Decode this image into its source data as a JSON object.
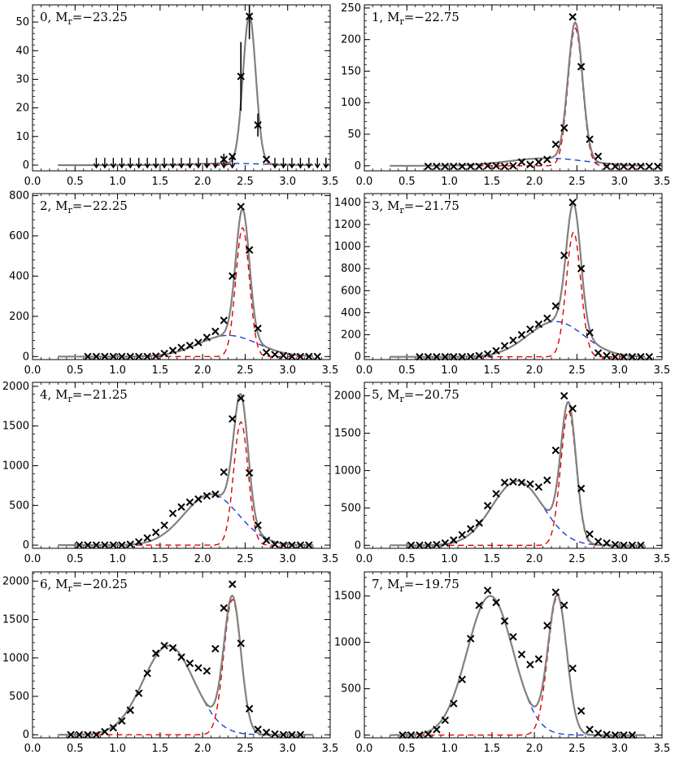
{
  "colors": {
    "total_fit": "#808080",
    "red_component": "#e00000",
    "blue_component": "#1f3fd0",
    "data_marker": "#000000",
    "axis": "#000000"
  },
  "chart_data": [
    {
      "type": "line",
      "label_index": "0",
      "label_mag": "−23.25",
      "xlim": [
        0.0,
        3.5
      ],
      "ylim": [
        -2,
        56
      ],
      "xticks": [
        0.0,
        0.5,
        1.0,
        1.5,
        2.0,
        2.5,
        3.0,
        3.5
      ],
      "xtick_labels": [
        "0.0",
        "0.5",
        "1.0",
        "1.5",
        "2.0",
        "2.5",
        "3.0",
        "3.5"
      ],
      "yticks": [
        0,
        10,
        20,
        30,
        40,
        50
      ],
      "ytick_labels": [
        "0",
        "10",
        "20",
        "30",
        "40",
        "50"
      ],
      "red": {
        "amp": 52,
        "mu": 2.55,
        "sigma": 0.075
      },
      "blue": {
        "amp": 0.6,
        "mu": 2.3,
        "sigma": 0.4
      },
      "points": [
        [
          2.25,
          2
        ],
        [
          2.35,
          3
        ],
        [
          2.45,
          31
        ],
        [
          2.55,
          52
        ],
        [
          2.65,
          14
        ],
        [
          2.75,
          2
        ]
      ],
      "upper_limits": [
        0.75,
        0.85,
        0.95,
        1.05,
        1.15,
        1.25,
        1.35,
        1.45,
        1.55,
        1.65,
        1.75,
        1.85,
        1.95,
        2.05,
        2.15,
        2.25,
        2.35,
        2.85,
        2.95,
        3.05,
        3.15,
        3.25,
        3.35,
        3.45
      ],
      "error_bars": [
        [
          2.45,
          31,
          12
        ],
        [
          2.55,
          52,
          8
        ],
        [
          2.65,
          14,
          4
        ],
        [
          2.25,
          2,
          2
        ]
      ]
    },
    {
      "type": "line",
      "label_index": "1",
      "label_mag": "−22.75",
      "xlim": [
        0.0,
        3.5
      ],
      "ylim": [
        -8,
        255
      ],
      "xticks": [
        0.0,
        0.5,
        1.0,
        1.5,
        2.0,
        2.5,
        3.0,
        3.5
      ],
      "xtick_labels": [
        "0.0",
        "0.5",
        "1.0",
        "1.5",
        "2.0",
        "2.5",
        "3.0",
        "3.5"
      ],
      "yticks": [
        0,
        50,
        100,
        150,
        200,
        250
      ],
      "ytick_labels": [
        "0",
        "50",
        "100",
        "150",
        "200",
        "250"
      ],
      "red": {
        "amp": 218,
        "mu": 2.48,
        "sigma": 0.085
      },
      "blue": {
        "amp": 12,
        "mu": 2.15,
        "sigma": 0.45
      },
      "points": [
        [
          0.75,
          -1
        ],
        [
          0.85,
          -1
        ],
        [
          0.95,
          -1
        ],
        [
          1.05,
          -1
        ],
        [
          1.15,
          -1
        ],
        [
          1.25,
          -1
        ],
        [
          1.35,
          -1
        ],
        [
          1.45,
          0
        ],
        [
          1.55,
          0
        ],
        [
          1.65,
          -1
        ],
        [
          1.75,
          0
        ],
        [
          1.85,
          6
        ],
        [
          1.95,
          2
        ],
        [
          2.05,
          6
        ],
        [
          2.15,
          10
        ],
        [
          2.25,
          34
        ],
        [
          2.35,
          60
        ],
        [
          2.45,
          236
        ],
        [
          2.55,
          157
        ],
        [
          2.65,
          42
        ],
        [
          2.75,
          15
        ],
        [
          2.85,
          -1
        ],
        [
          2.95,
          -1
        ],
        [
          3.05,
          -1
        ],
        [
          3.15,
          -1
        ],
        [
          3.25,
          -1
        ],
        [
          3.35,
          -1
        ],
        [
          3.45,
          -1
        ]
      ]
    },
    {
      "type": "line",
      "label_index": "2",
      "label_mag": "−22.25",
      "xlim": [
        0.0,
        3.5
      ],
      "ylim": [
        -15,
        810
      ],
      "xticks": [
        0.0,
        0.5,
        1.0,
        1.5,
        2.0,
        2.5,
        3.0,
        3.5
      ],
      "xtick_labels": [
        "0.0",
        "0.5",
        "1.0",
        "1.5",
        "2.0",
        "2.5",
        "3.0",
        "3.5"
      ],
      "yticks": [
        0,
        200,
        400,
        600,
        800
      ],
      "ytick_labels": [
        "0",
        "200",
        "400",
        "600",
        "800"
      ],
      "red": {
        "amp": 640,
        "mu": 2.47,
        "sigma": 0.08
      },
      "blue": {
        "amp": 105,
        "mu": 2.3,
        "sigma": 0.35
      },
      "points": [
        [
          0.65,
          0
        ],
        [
          0.75,
          0
        ],
        [
          0.85,
          0
        ],
        [
          0.95,
          0
        ],
        [
          1.05,
          0
        ],
        [
          1.15,
          0
        ],
        [
          1.25,
          0
        ],
        [
          1.35,
          0
        ],
        [
          1.45,
          2
        ],
        [
          1.55,
          15
        ],
        [
          1.65,
          30
        ],
        [
          1.75,
          45
        ],
        [
          1.85,
          55
        ],
        [
          1.95,
          70
        ],
        [
          2.05,
          95
        ],
        [
          2.15,
          125
        ],
        [
          2.25,
          180
        ],
        [
          2.35,
          400
        ],
        [
          2.45,
          745
        ],
        [
          2.55,
          530
        ],
        [
          2.65,
          140
        ],
        [
          2.75,
          20
        ],
        [
          2.85,
          10
        ],
        [
          2.95,
          5
        ],
        [
          3.05,
          0
        ],
        [
          3.15,
          0
        ],
        [
          3.25,
          0
        ],
        [
          3.35,
          0
        ]
      ]
    },
    {
      "type": "line",
      "label_index": "3",
      "label_mag": "−21.75",
      "xlim": [
        0.0,
        3.5
      ],
      "ylim": [
        -25,
        1480
      ],
      "xticks": [
        0.0,
        0.5,
        1.0,
        1.5,
        2.0,
        2.5,
        3.0,
        3.5
      ],
      "xtick_labels": [
        "0.0",
        "0.5",
        "1.0",
        "1.5",
        "2.0",
        "2.5",
        "3.0",
        "3.5"
      ],
      "yticks": [
        0,
        200,
        400,
        600,
        800,
        1000,
        1200,
        1400
      ],
      "ytick_labels": [
        "0",
        "200",
        "400",
        "600",
        "800",
        "1000",
        "1200",
        "1400"
      ],
      "red": {
        "amp": 1130,
        "mu": 2.46,
        "sigma": 0.085
      },
      "blue": {
        "amp": 320,
        "mu": 2.25,
        "sigma": 0.33
      },
      "points": [
        [
          0.65,
          0
        ],
        [
          0.75,
          0
        ],
        [
          0.85,
          0
        ],
        [
          0.95,
          0
        ],
        [
          1.05,
          0
        ],
        [
          1.15,
          0
        ],
        [
          1.25,
          2
        ],
        [
          1.35,
          10
        ],
        [
          1.45,
          25
        ],
        [
          1.55,
          55
        ],
        [
          1.65,
          100
        ],
        [
          1.75,
          150
        ],
        [
          1.85,
          200
        ],
        [
          1.95,
          250
        ],
        [
          2.05,
          295
        ],
        [
          2.15,
          350
        ],
        [
          2.25,
          460
        ],
        [
          2.35,
          920
        ],
        [
          2.45,
          1400
        ],
        [
          2.55,
          800
        ],
        [
          2.65,
          220
        ],
        [
          2.75,
          35
        ],
        [
          2.85,
          10
        ],
        [
          2.95,
          0
        ],
        [
          3.05,
          0
        ],
        [
          3.15,
          0
        ],
        [
          3.25,
          0
        ],
        [
          3.35,
          0
        ]
      ]
    },
    {
      "type": "line",
      "label_index": "4",
      "label_mag": "−21.25",
      "xlim": [
        0.0,
        3.5
      ],
      "ylim": [
        -40,
        2050
      ],
      "xticks": [
        0.0,
        0.5,
        1.0,
        1.5,
        2.0,
        2.5,
        3.0,
        3.5
      ],
      "xtick_labels": [
        "0.0",
        "0.5",
        "1.0",
        "1.5",
        "2.0",
        "2.5",
        "3.0",
        "3.5"
      ],
      "yticks": [
        0,
        500,
        1000,
        1500,
        2000
      ],
      "ytick_labels": [
        "0",
        "500",
        "1000",
        "1500",
        "2000"
      ],
      "red": {
        "amp": 1550,
        "mu": 2.45,
        "sigma": 0.085
      },
      "blue": {
        "amp": 640,
        "mu": 2.1,
        "sigma": 0.32
      },
      "points": [
        [
          0.55,
          0
        ],
        [
          0.65,
          0
        ],
        [
          0.75,
          0
        ],
        [
          0.85,
          0
        ],
        [
          0.95,
          0
        ],
        [
          1.05,
          0
        ],
        [
          1.15,
          10
        ],
        [
          1.25,
          40
        ],
        [
          1.35,
          90
        ],
        [
          1.45,
          160
        ],
        [
          1.55,
          250
        ],
        [
          1.65,
          400
        ],
        [
          1.75,
          480
        ],
        [
          1.85,
          540
        ],
        [
          1.95,
          580
        ],
        [
          2.05,
          620
        ],
        [
          2.15,
          640
        ],
        [
          2.25,
          920
        ],
        [
          2.35,
          1590
        ],
        [
          2.45,
          1850
        ],
        [
          2.55,
          910
        ],
        [
          2.65,
          250
        ],
        [
          2.75,
          60
        ],
        [
          2.85,
          10
        ],
        [
          2.95,
          0
        ],
        [
          3.05,
          0
        ],
        [
          3.15,
          0
        ],
        [
          3.25,
          0
        ]
      ]
    },
    {
      "type": "line",
      "label_index": "5",
      "label_mag": "−20.75",
      "xlim": [
        0.0,
        3.5
      ],
      "ylim": [
        -40,
        2180
      ],
      "xticks": [
        0.0,
        0.5,
        1.0,
        1.5,
        2.0,
        2.5,
        3.0,
        3.5
      ],
      "xtick_labels": [
        "0.0",
        "0.5",
        "1.0",
        "1.5",
        "2.0",
        "2.5",
        "3.0",
        "3.5"
      ],
      "yticks": [
        0,
        500,
        1000,
        1500,
        2000
      ],
      "ytick_labels": [
        "0",
        "500",
        "1000",
        "1500",
        "2000"
      ],
      "red": {
        "amp": 1800,
        "mu": 2.4,
        "sigma": 0.09
      },
      "blue": {
        "amp": 860,
        "mu": 1.8,
        "sigma": 0.3
      },
      "points": [
        [
          0.55,
          0
        ],
        [
          0.65,
          0
        ],
        [
          0.75,
          0
        ],
        [
          0.85,
          10
        ],
        [
          0.95,
          30
        ],
        [
          1.05,
          70
        ],
        [
          1.15,
          140
        ],
        [
          1.25,
          220
        ],
        [
          1.35,
          300
        ],
        [
          1.45,
          530
        ],
        [
          1.55,
          690
        ],
        [
          1.65,
          840
        ],
        [
          1.75,
          850
        ],
        [
          1.85,
          840
        ],
        [
          1.95,
          820
        ],
        [
          2.05,
          780
        ],
        [
          2.15,
          870
        ],
        [
          2.25,
          1270
        ],
        [
          2.35,
          2000
        ],
        [
          2.45,
          1830
        ],
        [
          2.55,
          760
        ],
        [
          2.65,
          150
        ],
        [
          2.75,
          50
        ],
        [
          2.85,
          30
        ],
        [
          2.95,
          10
        ],
        [
          3.05,
          0
        ],
        [
          3.15,
          0
        ],
        [
          3.25,
          0
        ]
      ]
    },
    {
      "type": "line",
      "label_index": "6",
      "label_mag": "−20.25",
      "xlim": [
        0.0,
        3.5
      ],
      "ylim": [
        -40,
        2120
      ],
      "xticks": [
        0.0,
        0.5,
        1.0,
        1.5,
        2.0,
        2.5,
        3.0,
        3.5
      ],
      "xtick_labels": [
        "0.0",
        "0.5",
        "1.0",
        "1.5",
        "2.0",
        "2.5",
        "3.0",
        "3.5"
      ],
      "yticks": [
        0,
        500,
        1000,
        1500,
        2000
      ],
      "ytick_labels": [
        "0",
        "500",
        "1000",
        "1500",
        "2000"
      ],
      "red": {
        "amp": 1760,
        "mu": 2.35,
        "sigma": 0.1
      },
      "blue": {
        "amp": 1160,
        "mu": 1.6,
        "sigma": 0.3
      },
      "points": [
        [
          0.45,
          0
        ],
        [
          0.55,
          0
        ],
        [
          0.65,
          0
        ],
        [
          0.75,
          0
        ],
        [
          0.85,
          40
        ],
        [
          0.95,
          90
        ],
        [
          1.05,
          180
        ],
        [
          1.15,
          320
        ],
        [
          1.25,
          540
        ],
        [
          1.35,
          800
        ],
        [
          1.45,
          1060
        ],
        [
          1.55,
          1160
        ],
        [
          1.65,
          1130
        ],
        [
          1.75,
          1010
        ],
        [
          1.85,
          930
        ],
        [
          1.95,
          870
        ],
        [
          2.05,
          830
        ],
        [
          2.15,
          1120
        ],
        [
          2.25,
          1650
        ],
        [
          2.35,
          1960
        ],
        [
          2.45,
          1190
        ],
        [
          2.55,
          340
        ],
        [
          2.65,
          70
        ],
        [
          2.75,
          30
        ],
        [
          2.85,
          10
        ],
        [
          2.95,
          0
        ],
        [
          3.05,
          0
        ],
        [
          3.15,
          0
        ]
      ]
    },
    {
      "type": "line",
      "label_index": "7",
      "label_mag": "−19.75",
      "xlim": [
        0.0,
        3.5
      ],
      "ylim": [
        -30,
        1760
      ],
      "xticks": [
        0.0,
        0.5,
        1.0,
        1.5,
        2.0,
        2.5,
        3.0,
        3.5
      ],
      "xtick_labels": [
        "0.0",
        "0.5",
        "1.0",
        "1.5",
        "2.0",
        "2.5",
        "3.0",
        "3.5"
      ],
      "yticks": [
        0,
        500,
        1000,
        1500
      ],
      "ytick_labels": [
        "0",
        "500",
        "1000",
        "1500"
      ],
      "red": {
        "amp": 1490,
        "mu": 2.27,
        "sigma": 0.11
      },
      "blue": {
        "amp": 1500,
        "mu": 1.48,
        "sigma": 0.27
      },
      "points": [
        [
          0.45,
          0
        ],
        [
          0.55,
          0
        ],
        [
          0.65,
          0
        ],
        [
          0.75,
          10
        ],
        [
          0.85,
          60
        ],
        [
          0.95,
          160
        ],
        [
          1.05,
          340
        ],
        [
          1.15,
          600
        ],
        [
          1.25,
          1040
        ],
        [
          1.35,
          1400
        ],
        [
          1.45,
          1560
        ],
        [
          1.55,
          1430
        ],
        [
          1.65,
          1230
        ],
        [
          1.75,
          1060
        ],
        [
          1.85,
          870
        ],
        [
          1.95,
          760
        ],
        [
          2.05,
          820
        ],
        [
          2.15,
          1180
        ],
        [
          2.25,
          1540
        ],
        [
          2.35,
          1400
        ],
        [
          2.45,
          720
        ],
        [
          2.55,
          260
        ],
        [
          2.65,
          60
        ],
        [
          2.75,
          20
        ],
        [
          2.85,
          5
        ],
        [
          2.95,
          0
        ],
        [
          3.05,
          0
        ],
        [
          3.15,
          0
        ]
      ]
    }
  ]
}
